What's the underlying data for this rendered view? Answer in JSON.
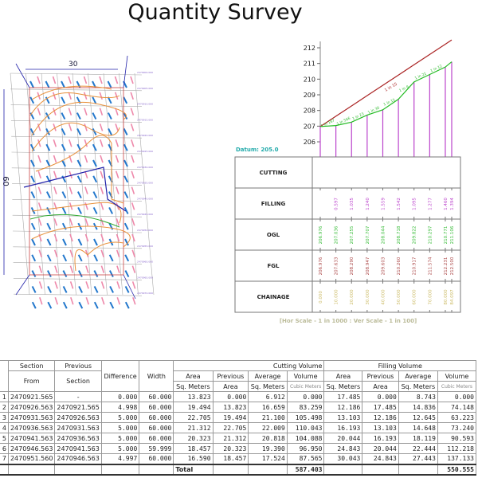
{
  "title": "Quantity Survey",
  "plan": {
    "dim_width": "30",
    "dim_height": "60"
  },
  "profile": {
    "datum": "Datum: 205.0",
    "scale_caption": "[Hor Scale - 1 in 1000 : Ver Scale - 1 in 100]",
    "row_labels": [
      "CUTTING",
      "FILLING",
      "OGL",
      "FGL",
      "CHAINAGE"
    ],
    "fgl_grade_label": "1 in 15",
    "ogl_grade_labels": [
      "1 in 167",
      "1 in 566",
      "1 in 23",
      "1 in 30",
      "1 in 15",
      "1 in 9",
      "1 in 21",
      "1 in 12"
    ]
  },
  "chart_data": {
    "type": "line",
    "ylim": [
      205,
      212.5
    ],
    "yticks": [
      206,
      207,
      208,
      209,
      210,
      211,
      212
    ],
    "datum": 205.0,
    "chainage": [
      "0.000",
      "10.000",
      "20.000",
      "30.000",
      "40.000",
      "50.000",
      "60.000",
      "70.000",
      "80.000",
      "84.097"
    ],
    "x": [
      0,
      10,
      20,
      30,
      40,
      50,
      60,
      70,
      80,
      84.097
    ],
    "series": [
      {
        "name": "OGL",
        "color": "#22bb22",
        "values": [
          206.976,
          207.036,
          207.255,
          207.707,
          208.044,
          208.718,
          209.822,
          210.297,
          210.771,
          211.106
        ],
        "labels": [
          "206.976",
          "207.036",
          "207.255",
          "207.707",
          "208.044",
          "208.718",
          "209.822",
          "210.297",
          "210.771",
          "211.106"
        ]
      },
      {
        "name": "FGL",
        "color": "#aa2222",
        "values": [
          206.976,
          207.633,
          208.29,
          208.947,
          209.603,
          210.26,
          210.917,
          211.574,
          212.231,
          212.5
        ],
        "labels": [
          "206.976",
          "207.633",
          "208.290",
          "208.947",
          "209.603",
          "210.260",
          "210.917",
          "211.574",
          "212.231",
          "212.500"
        ]
      }
    ],
    "filling": [
      "",
      "0.597",
      "1.035",
      "1.240",
      "1.559",
      "1.542",
      "1.095",
      "1.277",
      "1.460",
      "1.394"
    ],
    "cutting": [
      "",
      "",
      "",
      "",
      "",
      "",
      "",
      "",
      "",
      ""
    ]
  },
  "table": {
    "headers": {
      "section": "Section",
      "from": "From",
      "previous": "Previous",
      "previous2": "Section",
      "difference": "Difference",
      "width": "Width",
      "cutting": "Cutting Volume",
      "filling": "Filling Volume",
      "area": "Area",
      "sqm": "Sq. Meters",
      "prev": "Previous",
      "prev_area": "Area",
      "average": "Average",
      "volume": "Volume",
      "cubic": "Cubic Meters"
    },
    "rows": [
      [
        "1",
        "2470921.565",
        "-",
        "0.000",
        "60.000",
        "13.823",
        "0.000",
        "6.912",
        "0.000",
        "17.485",
        "0.000",
        "8.743",
        "0.000"
      ],
      [
        "2",
        "2470926.563",
        "2470921.565",
        "4.998",
        "60.000",
        "19.494",
        "13.823",
        "16.659",
        "83.259",
        "12.186",
        "17.485",
        "14.836",
        "74.148"
      ],
      [
        "3",
        "2470931.563",
        "2470926.563",
        "5.000",
        "60.000",
        "22.705",
        "19.494",
        "21.100",
        "105.498",
        "13.103",
        "12.186",
        "12.645",
        "63.223"
      ],
      [
        "4",
        "2470936.563",
        "2470931.563",
        "5.000",
        "60.000",
        "21.312",
        "22.705",
        "22.009",
        "110.043",
        "16.193",
        "13.103",
        "14.648",
        "73.240"
      ],
      [
        "5",
        "2470941.563",
        "2470936.563",
        "5.000",
        "60.000",
        "20.323",
        "21.312",
        "20.818",
        "104.088",
        "20.044",
        "16.193",
        "18.119",
        "90.593"
      ],
      [
        "6",
        "2470946.563",
        "2470941.563",
        "5.000",
        "59.999",
        "18.457",
        "20.323",
        "19.390",
        "96.950",
        "24.843",
        "20.044",
        "22.444",
        "112.218"
      ],
      [
        "7",
        "2470951.560",
        "2470946.563",
        "4.997",
        "60.000",
        "16.590",
        "18.457",
        "17.524",
        "87.565",
        "30.043",
        "24.843",
        "27.443",
        "137.133"
      ]
    ],
    "total_label": "Total",
    "cut_total": "587.403",
    "fill_total": "550.555"
  }
}
